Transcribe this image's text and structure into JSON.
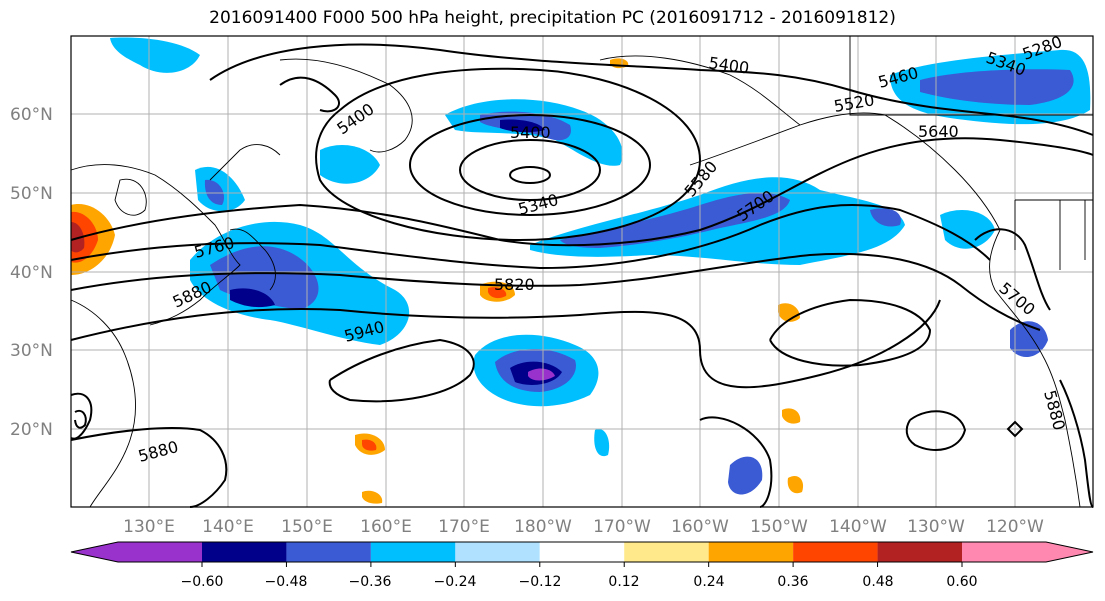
{
  "title": "2016091400 F000 500 hPa height, precipitation PC (2016091712 - 2016091812)",
  "map": {
    "lat_labels": [
      "60°N",
      "50°N",
      "40°N",
      "30°N",
      "20°N"
    ],
    "lon_labels": [
      "130°E",
      "140°E",
      "150°E",
      "160°E",
      "170°E",
      "180°W",
      "170°W",
      "160°W",
      "150°W",
      "140°W",
      "130°W",
      "120°W"
    ],
    "contour_labels": [
      "5400",
      "5400",
      "5400",
      "5460",
      "5340",
      "5280",
      "5340",
      "5520",
      "5640",
      "5580",
      "5700",
      "5760",
      "5820",
      "5880",
      "5940",
      "5880",
      "5700",
      "5880"
    ]
  },
  "colorbar": {
    "colors": [
      "#9932CC",
      "#00008B",
      "#3a5bd4",
      "#00bfff",
      "#b0e2ff",
      "#ffffff",
      "#ffe98a",
      "#ffa500",
      "#ff4500",
      "#b22222",
      "#ff88b0"
    ],
    "ticks": [
      "−0.60",
      "−0.48",
      "−0.36",
      "−0.24",
      "−0.12",
      "0.12",
      "0.24",
      "0.36",
      "0.48",
      "0.60"
    ]
  }
}
